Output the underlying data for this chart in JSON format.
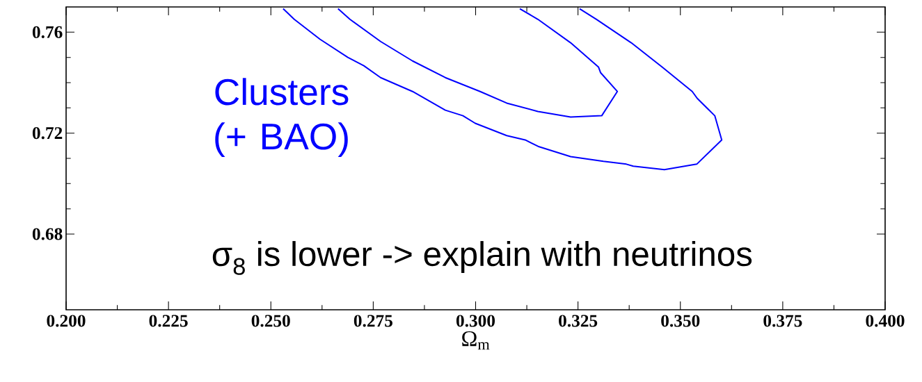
{
  "chart_data": {
    "type": "line",
    "xlabel": "Ω$_{m}$",
    "annotations": [
      "Clusters (+ BAO)",
      "σ$_{8}$ is lower -> explain with neutrinos"
    ],
    "xlim": [
      0.2,
      0.4
    ],
    "ylim": [
      0.65,
      0.77
    ],
    "xticks": [
      {
        "value": 0.2,
        "label": "0.200"
      },
      {
        "value": 0.225,
        "label": "0.225"
      },
      {
        "value": 0.25,
        "label": "0.250"
      },
      {
        "value": 0.275,
        "label": "0.275"
      },
      {
        "value": 0.3,
        "label": "0.300"
      },
      {
        "value": 0.325,
        "label": "0.325"
      },
      {
        "value": 0.35,
        "label": "0.350"
      },
      {
        "value": 0.375,
        "label": "0.375"
      },
      {
        "value": 0.4,
        "label": "0.400"
      }
    ],
    "yticks": [
      0.68,
      0.72,
      0.76
    ],
    "grid": false,
    "marker": "none",
    "line_style": "solid",
    "series": [
      {
        "color": "#0000ff",
        "x": [
          0.2664,
          0.2693,
          0.2768,
          0.2846,
          0.2926,
          0.3011,
          0.3076,
          0.3152,
          0.3232,
          0.3308,
          0.3346,
          0.3305,
          0.33,
          0.3232,
          0.3152,
          0.3108
        ],
        "values": [
          0.7693,
          0.7651,
          0.7563,
          0.7486,
          0.742,
          0.7365,
          0.7319,
          0.7286,
          0.7264,
          0.7269,
          0.7365,
          0.744,
          0.7462,
          0.7558,
          0.7651,
          0.7693
        ]
      },
      {
        "color": "#0000ff",
        "x": [
          0.253,
          0.2557,
          0.262,
          0.2688,
          0.2727,
          0.2768,
          0.2846,
          0.2926,
          0.2969,
          0.2999,
          0.3076,
          0.3121,
          0.3155,
          0.3232,
          0.3312,
          0.3368,
          0.3385,
          0.3461,
          0.354,
          0.3601,
          0.3584,
          0.3541,
          0.3529,
          0.3456,
          0.338,
          0.3295,
          0.3254
        ],
        "values": [
          0.7693,
          0.7651,
          0.7572,
          0.75,
          0.7467,
          0.742,
          0.7365,
          0.7291,
          0.7269,
          0.7239,
          0.719,
          0.7173,
          0.7146,
          0.7107,
          0.7088,
          0.7077,
          0.7069,
          0.7055,
          0.7077,
          0.7173,
          0.7269,
          0.7338,
          0.7365,
          0.7461,
          0.7558,
          0.7651,
          0.7693
        ]
      }
    ]
  }
}
